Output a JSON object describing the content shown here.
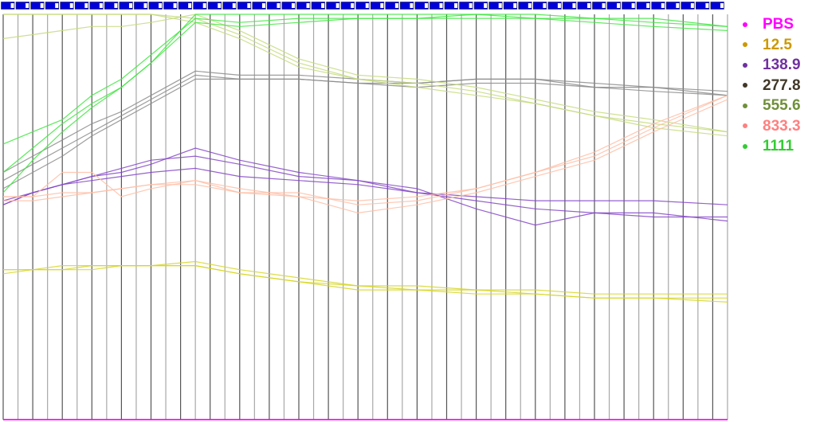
{
  "chart_data": {
    "type": "line",
    "title": "",
    "xlabel": "",
    "ylabel": "",
    "ylim": [
      0,
      100
    ],
    "grid": "vertical",
    "time_points": 50,
    "legend_placement": "right",
    "x": [
      0,
      2,
      4,
      6,
      8,
      10,
      13,
      16,
      20,
      24,
      28,
      32,
      36,
      40,
      44,
      49
    ],
    "series": [
      {
        "name": "PBS",
        "legend_color": "#ff00ff",
        "line_color": "#ff00ff",
        "replicates": [
          [
            0,
            0,
            0,
            0,
            0,
            0,
            0,
            0,
            0,
            0,
            0,
            0,
            0,
            0,
            0,
            0
          ]
        ]
      },
      {
        "name": "12.5",
        "legend_color": "#cc9900",
        "line_color": "#d6d626",
        "replicates": [
          [
            37,
            37,
            38,
            38,
            38,
            38,
            39,
            37,
            35,
            33,
            33,
            32,
            32,
            31,
            31,
            31
          ],
          [
            37,
            37,
            37,
            38,
            38,
            38,
            38,
            36,
            34,
            33,
            32,
            32,
            31,
            30,
            30,
            30
          ],
          [
            36,
            37,
            37,
            37,
            38,
            38,
            38,
            36,
            34,
            32,
            32,
            31,
            31,
            30,
            30,
            29
          ]
        ]
      },
      {
        "name": "138.9",
        "legend_color": "#7030a0",
        "line_color": "#8445c8",
        "replicates": [
          [
            53,
            56,
            58,
            60,
            61,
            63,
            67,
            64,
            61,
            59,
            57,
            52,
            48,
            51,
            51,
            49
          ],
          [
            53,
            56,
            58,
            60,
            62,
            64,
            65,
            63,
            60,
            59,
            56,
            55,
            54,
            54,
            54,
            53
          ],
          [
            54,
            56,
            58,
            59,
            60,
            61,
            62,
            60,
            59,
            58,
            56,
            54,
            52,
            51,
            50,
            50
          ]
        ]
      },
      {
        "name": "277.8",
        "legend_color": "#403828",
        "line_color": "#8c8c8c",
        "replicates": [
          [
            61,
            65,
            69,
            73,
            76,
            80,
            86,
            85,
            85,
            84,
            83,
            84,
            84,
            83,
            82,
            81
          ],
          [
            59,
            63,
            67,
            71,
            75,
            79,
            85,
            84,
            84,
            83,
            83,
            84,
            84,
            82,
            82,
            80
          ],
          [
            57,
            61,
            65,
            70,
            74,
            78,
            84,
            84,
            84,
            83,
            82,
            83,
            83,
            82,
            81,
            80
          ]
        ]
      },
      {
        "name": "555.6",
        "legend_color": "#70903a",
        "line_color": "#c4da7c",
        "replicates": [
          [
            94,
            95,
            96,
            97,
            97,
            98,
            100,
            96,
            89,
            85,
            84,
            82,
            79,
            76,
            74,
            71
          ],
          [
            100,
            100,
            100,
            100,
            100,
            100,
            99,
            95,
            88,
            84,
            83,
            81,
            78,
            75,
            73,
            71
          ],
          [
            100,
            100,
            100,
            100,
            100,
            100,
            98,
            94,
            87,
            84,
            82,
            80,
            78,
            75,
            72,
            70
          ]
        ]
      },
      {
        "name": "833.3",
        "legend_color": "#ff8080",
        "line_color": "#ffbea6",
        "replicates": [
          [
            55,
            55,
            61,
            61,
            55,
            57,
            59,
            56,
            56,
            53,
            54,
            57,
            61,
            66,
            73,
            80
          ],
          [
            55,
            55,
            56,
            56,
            57,
            58,
            58,
            56,
            55,
            54,
            55,
            57,
            61,
            65,
            72,
            80
          ],
          [
            54,
            54,
            55,
            56,
            57,
            58,
            59,
            57,
            55,
            51,
            53,
            56,
            60,
            64,
            71,
            79
          ]
        ]
      },
      {
        "name": "1111",
        "legend_color": "#33cc33",
        "line_color": "#3ee83e",
        "replicates": [
          [
            68,
            71,
            74,
            80,
            84,
            90,
            99,
            98,
            99,
            99,
            99,
            100,
            99,
            99,
            98,
            97
          ],
          [
            61,
            67,
            73,
            78,
            82,
            88,
            98,
            97,
            98,
            99,
            99,
            99,
            99,
            98,
            97,
            96
          ],
          [
            56,
            64,
            71,
            77,
            82,
            88,
            100,
            100,
            100,
            100,
            100,
            100,
            100,
            99,
            99,
            97
          ]
        ]
      }
    ],
    "colors": {
      "marker_fill": "#0000dd",
      "marker_window": "#ffffff"
    }
  }
}
